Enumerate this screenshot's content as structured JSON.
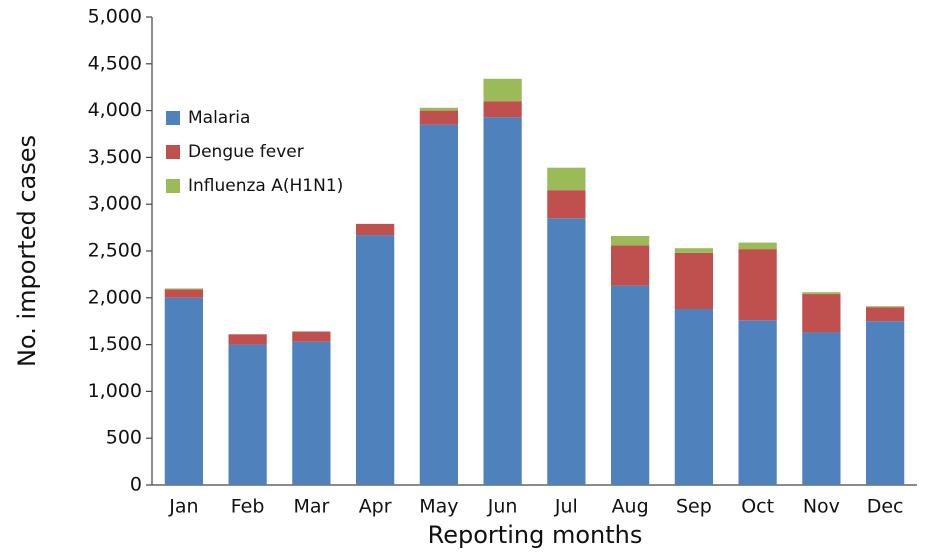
{
  "chart_data": {
    "type": "bar",
    "stacked": true,
    "xlabel": "Reporting months",
    "ylabel": "No. imported cases",
    "categories": [
      "Jan",
      "Feb",
      "Mar",
      "Apr",
      "May",
      "Jun",
      "Jul",
      "Aug",
      "Sep",
      "Oct",
      "Nov",
      "Dec"
    ],
    "series": [
      {
        "name": "Malaria",
        "color": "#4f81bd",
        "values": [
          2000,
          1500,
          1530,
          2670,
          3850,
          3930,
          2850,
          2130,
          1880,
          1760,
          1630,
          1750
        ]
      },
      {
        "name": "Dengue fever",
        "color": "#c0504d",
        "values": [
          90,
          110,
          110,
          120,
          150,
          170,
          300,
          430,
          600,
          760,
          410,
          150
        ]
      },
      {
        "name": "Influenza  A(H1N1)",
        "color": "#9bbb59",
        "values": [
          10,
          0,
          0,
          0,
          30,
          240,
          240,
          100,
          50,
          70,
          20,
          10
        ]
      }
    ],
    "ylim": [
      0,
      5000
    ],
    "yticks": [
      0,
      500,
      {
        "value": 1000,
        "label": "1,000"
      },
      {
        "value": 1500,
        "label": "1,500"
      },
      {
        "value": 2000,
        "label": "2,000"
      },
      {
        "value": 2500,
        "label": "2,500"
      },
      {
        "value": 3000,
        "label": "3,000"
      },
      {
        "value": 3500,
        "label": "3,500"
      },
      {
        "value": 4000,
        "label": "4,000"
      },
      {
        "value": 4500,
        "label": "4,500"
      },
      {
        "value": 5000,
        "label": "5,000"
      }
    ],
    "grid": false,
    "legend": "upper left"
  }
}
